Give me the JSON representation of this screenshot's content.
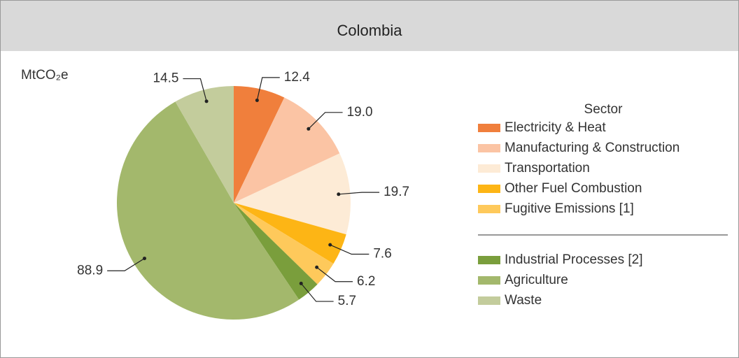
{
  "chart_data": {
    "type": "pie",
    "title": "Colombia",
    "unit": "MtCO₂e",
    "legend_title": "Sector",
    "categories": [
      "Electricity & Heat",
      "Manufacturing & Construction",
      "Transportation",
      "Other Fuel Combustion",
      "Fugitive Emissions [1]",
      "Industrial Processes [2]",
      "Agriculture",
      "Waste"
    ],
    "values": [
      12.4,
      19.0,
      19.7,
      7.6,
      6.2,
      5.7,
      88.9,
      14.5
    ],
    "value_labels": [
      "12.4",
      "19.0",
      "19.7",
      "7.6",
      "6.2",
      "5.7",
      "88.9",
      "14.5"
    ],
    "colors": [
      "#f07f3c",
      "#fbc4a4",
      "#fdebd6",
      "#fdb515",
      "#fec95b",
      "#7a9e3c",
      "#a3b86c",
      "#c3cc9c"
    ],
    "legend": "right"
  }
}
